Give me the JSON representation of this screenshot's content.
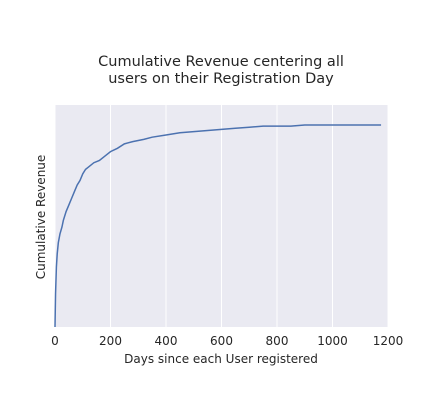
{
  "chart_data": {
    "type": "line",
    "title_lines": [
      "Cumulative Revenue centering all",
      "users on their Registration Day"
    ],
    "xlabel": "Days since each User registered",
    "ylabel": "Cumulative Revenue",
    "xlim": [
      0,
      1200
    ],
    "ylim": [
      0,
      1.0
    ],
    "xticks": [
      0,
      200,
      400,
      600,
      800,
      1000,
      1200
    ],
    "yticks": [],
    "grid": true,
    "colors": {
      "line": "#4c72b0",
      "background": "#eaeaf2",
      "grid": "#ffffff"
    },
    "series": [
      {
        "x": [
          0,
          2,
          5,
          8,
          12,
          18,
          25,
          30,
          40,
          50,
          60,
          70,
          80,
          90,
          100,
          110,
          120,
          140,
          160,
          180,
          200,
          225,
          250,
          280,
          320,
          350,
          400,
          450,
          500,
          550,
          600,
          650,
          700,
          750,
          800,
          850,
          900,
          1000,
          1100,
          1175
        ],
        "y": [
          0,
          0.15,
          0.27,
          0.33,
          0.38,
          0.42,
          0.45,
          0.48,
          0.52,
          0.55,
          0.58,
          0.61,
          0.64,
          0.66,
          0.69,
          0.71,
          0.72,
          0.74,
          0.75,
          0.77,
          0.79,
          0.805,
          0.825,
          0.835,
          0.845,
          0.855,
          0.865,
          0.875,
          0.88,
          0.885,
          0.89,
          0.895,
          0.9,
          0.905,
          0.905,
          0.905,
          0.91,
          0.91,
          0.91,
          0.91
        ]
      }
    ]
  }
}
